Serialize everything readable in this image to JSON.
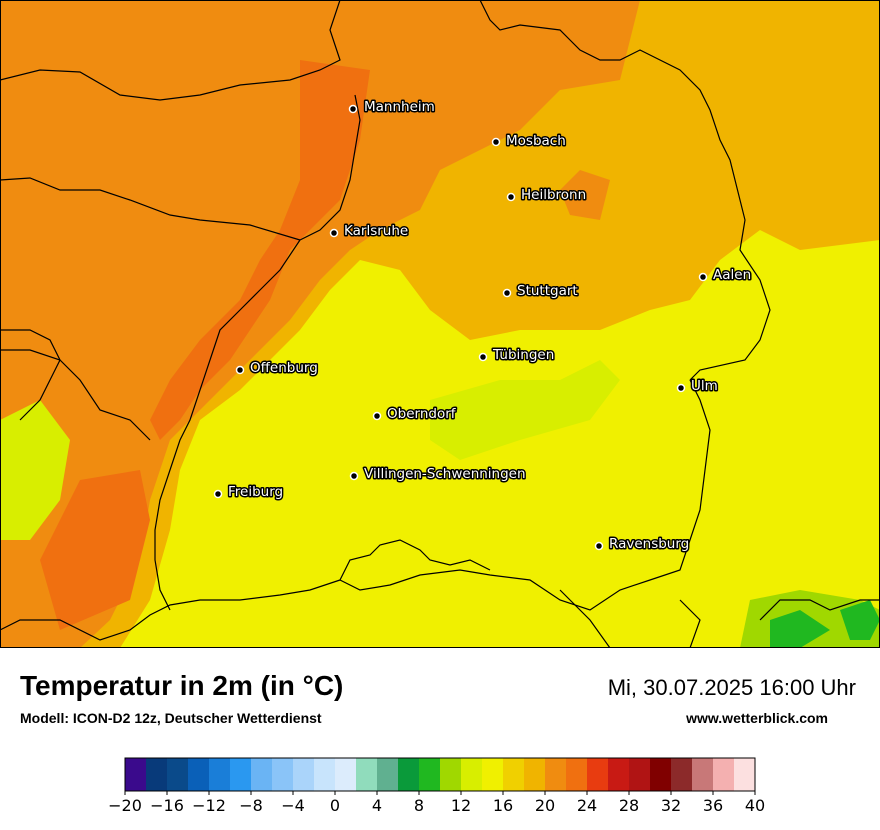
{
  "map": {
    "cities": [
      {
        "name": "Mannheim"
      },
      {
        "name": "Mosbach"
      },
      {
        "name": "Heilbronn"
      },
      {
        "name": "Karlsruhe"
      },
      {
        "name": "Aalen"
      },
      {
        "name": "Stuttgart"
      },
      {
        "name": "Tübingen"
      },
      {
        "name": "Offenburg"
      },
      {
        "name": "Ulm"
      },
      {
        "name": "Oberndorf"
      },
      {
        "name": "Villingen-Schwenningen"
      },
      {
        "name": "Freiburg"
      },
      {
        "name": "Ravensburg"
      }
    ]
  },
  "header": {
    "title": "Temperatur in 2m (in °C)",
    "model": "Modell: ICON-D2 12z, Deutscher Wetterdienst",
    "datetime": "Mi, 30.07.2025 16:00 Uhr",
    "website": "www.wetterblick.com"
  },
  "legend": {
    "ticks": [
      "−20",
      "−16",
      "−12",
      "−8",
      "−4",
      "0",
      "4",
      "8",
      "12",
      "16",
      "20",
      "24",
      "28",
      "32",
      "36",
      "40"
    ],
    "colors": [
      "#3a0a8c",
      "#083a7a",
      "#0a4a8a",
      "#0a60b8",
      "#1a7ed8",
      "#2a98f0",
      "#6ab4f4",
      "#8ac4f8",
      "#aad4fa",
      "#c8e4fc",
      "#dcecfc",
      "#90dcbc",
      "#60b090",
      "#0a9a3a",
      "#20b820",
      "#a0d800",
      "#d8ee00",
      "#f0f000",
      "#f0d000",
      "#f0b400",
      "#f08c10",
      "#f07010",
      "#e83c10",
      "#c81a14",
      "#b01414",
      "#800000",
      "#8c2a2a",
      "#c87878",
      "#f4b0b0",
      "#fce0e0"
    ]
  }
}
